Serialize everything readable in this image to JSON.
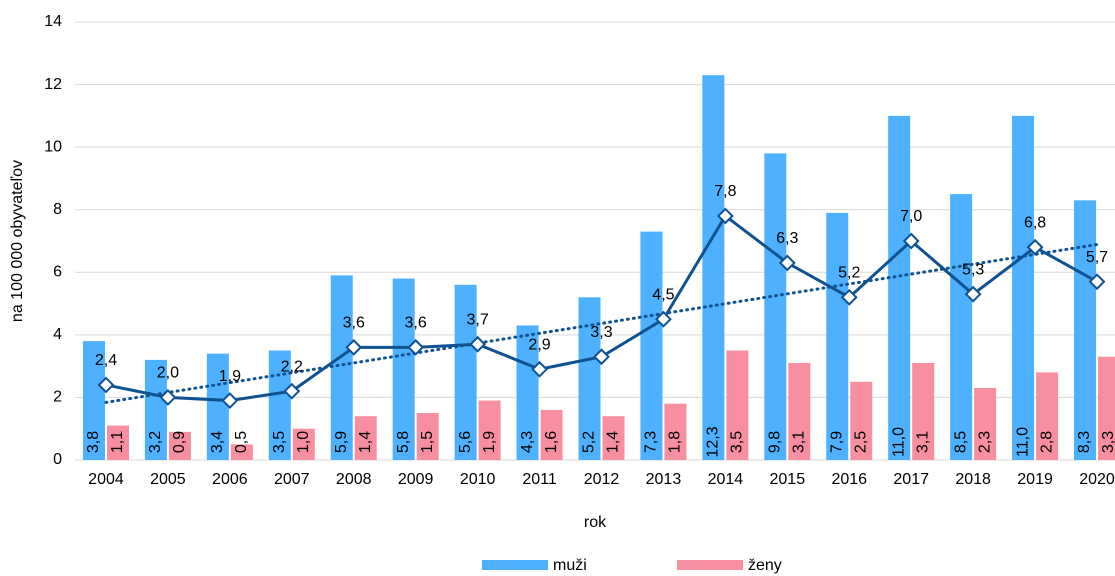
{
  "chart_data": {
    "type": "bar_line",
    "categories": [
      "2004",
      "2005",
      "2006",
      "2007",
      "2008",
      "2009",
      "2010",
      "2011",
      "2012",
      "2013",
      "2014",
      "2015",
      "2016",
      "2017",
      "2018",
      "2019",
      "2020"
    ],
    "series": [
      {
        "name": "muži",
        "color": "#4db1ff",
        "label_color": "#1f4e79",
        "values": [
          3.8,
          3.2,
          3.4,
          3.5,
          5.9,
          5.8,
          5.6,
          4.3,
          5.2,
          7.3,
          12.3,
          9.8,
          7.9,
          11.0,
          8.5,
          11.0,
          8.3
        ],
        "value_labels": [
          "3,8",
          "3,2",
          "3,4",
          "3,5",
          "5,9",
          "5,8",
          "5,6",
          "4,3",
          "5,2",
          "7,3",
          "12,3",
          "9,8",
          "7,9",
          "11,0",
          "8,5",
          "11,0",
          "8,3"
        ]
      },
      {
        "name": "ženy",
        "color": "#f78fa1",
        "label_color": "#7b1a2a",
        "values": [
          1.1,
          0.9,
          0.5,
          1.0,
          1.4,
          1.5,
          1.9,
          1.6,
          1.4,
          1.8,
          3.5,
          3.1,
          2.5,
          3.1,
          2.3,
          2.8,
          3.3
        ],
        "value_labels": [
          "1,1",
          "0,9",
          "0,5",
          "1,0",
          "1,4",
          "1,5",
          "1,9",
          "1,6",
          "1,4",
          "1,8",
          "3,5",
          "3,1",
          "2,5",
          "3,1",
          "2,3",
          "2,8",
          "3,3"
        ]
      },
      {
        "type": "line",
        "color": "#0f5291",
        "label_color": "#1f4e79",
        "trendline": true,
        "values": [
          2.4,
          2.0,
          1.9,
          2.2,
          3.6,
          3.6,
          3.7,
          2.9,
          3.3,
          4.5,
          7.8,
          6.3,
          5.2,
          7.0,
          5.3,
          6.8,
          5.7
        ],
        "value_labels": [
          "2,4",
          "2,0",
          "1,9",
          "2,2",
          "3,6",
          "3,6",
          "3,7",
          "2,9",
          "3,3",
          "4,5",
          "7,8",
          "6,3",
          "5,2",
          "7,0",
          "5,3",
          "6,8",
          "5,7"
        ]
      }
    ],
    "xlabel": "rok",
    "ylabel": "na 100 000 obyvateľov",
    "ylim": [
      0,
      14
    ],
    "yticks": [
      0,
      2,
      4,
      6,
      8,
      10,
      12,
      14
    ],
    "grid": true,
    "legend": "bottom"
  }
}
